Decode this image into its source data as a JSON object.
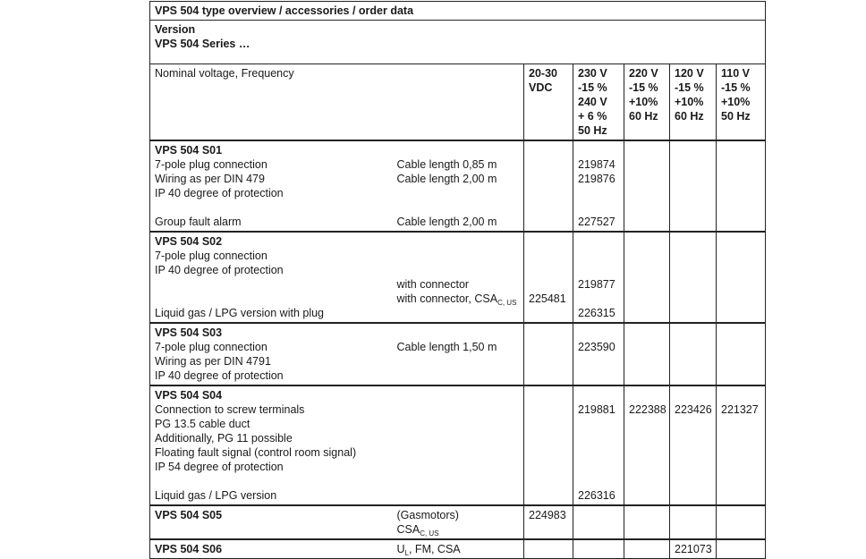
{
  "title": "VPS 504 type overview / accessories / order data",
  "version_label": "Version",
  "series_label": "VPS 504 Series …",
  "header": {
    "label": "Nominal voltage, Frequency",
    "columns": [
      [
        "20-30",
        "VDC"
      ],
      [
        "230 V",
        "-15 %",
        "240 V",
        "+ 6 %",
        "50 Hz"
      ],
      [
        "220 V",
        "-15 %",
        "+10%",
        "60 Hz"
      ],
      [
        "120 V",
        "-15 %",
        "+10%",
        "60 Hz"
      ],
      [
        "110 V",
        "-15 %",
        "+10%",
        "50 Hz"
      ]
    ]
  },
  "rows": [
    {
      "name": "VPS 504 S01",
      "desc": [
        "7-pole plug connection",
        "Wiring as per DIN 479",
        "IP 40 degree of protection",
        "",
        "Group fault alarm"
      ],
      "note": [
        "Cable length 0,85 m",
        "Cable length 2,00 m",
        "",
        "",
        "Cable length 2,00 m"
      ],
      "values": [
        [
          "",
          "",
          "",
          "",
          "",
          ""
        ],
        [
          "",
          "219874",
          "219876",
          "",
          "",
          "227527"
        ],
        [
          ""
        ],
        [
          ""
        ],
        [
          ""
        ]
      ]
    },
    {
      "name": "VPS 504 S02",
      "desc": [
        "7-pole plug connection",
        "IP 40 degree of protection",
        "",
        "",
        "Liquid gas / LPG version with plug"
      ],
      "note": [
        "",
        "",
        "with connector",
        {
          "text": "with connector, CSA",
          "sub": "C, US"
        },
        ""
      ],
      "values": [
        [
          "",
          "",
          "",
          "",
          "225481",
          ""
        ],
        [
          "",
          "",
          "",
          "219877",
          "",
          "226315"
        ],
        [
          ""
        ],
        [
          ""
        ],
        [
          ""
        ]
      ]
    },
    {
      "name": "VPS 504 S03",
      "desc": [
        "7-pole plug connection",
        "Wiring as per DIN 4791",
        "IP 40 degree of protection"
      ],
      "note": [
        "Cable length 1,50 m",
        "",
        ""
      ],
      "values": [
        [
          ""
        ],
        [
          "",
          "223590"
        ],
        [
          ""
        ],
        [
          ""
        ],
        [
          ""
        ]
      ]
    },
    {
      "name": "VPS 504 S04",
      "desc": [
        "Connection to screw terminals",
        "PG 13.5 cable duct",
        "Additionally, PG 11 possible",
        "Floating fault signal (control room signal)",
        "IP 54 degree of protection",
        "",
        "Liquid gas / LPG version"
      ],
      "note": [],
      "values": [
        [
          ""
        ],
        [
          "",
          "219881",
          "",
          "",
          "",
          "",
          "",
          "226316"
        ],
        [
          "",
          "222388"
        ],
        [
          "",
          "223426"
        ],
        [
          "",
          "221327"
        ]
      ]
    },
    {
      "name": "VPS 504 S05",
      "desc": [
        ""
      ],
      "note_first": "(Gasmotors)",
      "note": [
        {
          "text": "CSA",
          "sub": "C, US"
        }
      ],
      "values": [
        [
          "224983"
        ],
        [
          ""
        ],
        [
          ""
        ],
        [
          ""
        ],
        [
          ""
        ]
      ]
    },
    {
      "name": "VPS 504 S06",
      "desc": [],
      "note_first": {
        "text": "U",
        "sub": "L",
        "after": ", FM, CSA"
      },
      "note": [],
      "values": [
        [
          ""
        ],
        [
          ""
        ],
        [
          ""
        ],
        [
          "221073"
        ],
        [
          ""
        ]
      ]
    }
  ]
}
